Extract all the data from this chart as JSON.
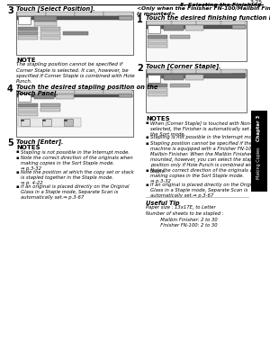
{
  "page_num": "3-25",
  "section_title": "5. Selecting the Finishing",
  "bg_color": "#ffffff",
  "left_col": {
    "step3_num": "3",
    "step3_text": "Touch [Select Position].",
    "note_label": "NOTE",
    "note_text": "The stapling position cannot be specified if\nCorner Staple is selected. It can, however, be\nspecified if Corner Staple is combined with Hole\nPunch.",
    "step4_num": "4",
    "step4_text": "Touch the desired stapling position on the\nTouch Panel.",
    "step5_num": "5",
    "step5_text": "Touch [Enter].",
    "notes_label": "NOTES",
    "notes_items": [
      "Stapling is not possible in the Interrupt mode.",
      "Note the correct direction of the originals when\nmaking copies in the Sort Staple mode.\n⇒ p.3-32",
      "Note the position at which the copy set or stack\nis stapled together in the Staple mode.\n⇒ p. 4-22",
      "If an original is placed directly on the Original\nGlass in a Staple mode, Separate Scan is\nautomatically set.⇒ p.3-67"
    ]
  },
  "right_col": {
    "header_italic": "<Only when the Finisher FN-100/Mailbin Finisher\nis mounted>",
    "step1_num": "1",
    "step1_text": "Touch the desired finishing function key.",
    "step2_num": "2",
    "step2_text": "Touch [Corner Staple].",
    "notes_label": "NOTES",
    "notes_items": [
      "When [Corner Staple] is touched with Non-Sort\nselected, the Finisher is automatically set into\nthe Sort mode.",
      "Stapling is not possible in the Interrupt mode.",
      "Stapling position cannot be specified if the\nmachine is equipped with a Finisher FN-100 or\nMailbin Finisher. When the Mailbin Finisher is\nmounted, however, you can select the stapling\nposition only if Hole Punch is combined with\nStaple.",
      "Note the correct direction of the originals when\nmaking copies in the Sort Staple mode.\n⇒ p.3-32",
      "If an original is placed directly on the Original\nGlass in a Staple mode, Separate Scan is\nautomatically set.⇒ p.3-67"
    ],
    "tip_label": "Useful Tip",
    "tip_text": "Paper size : 13x17E, to Letter\nNumber of sheets to be stapled :\n          Mailbin Finisher: 2 to 30\n          Finisher FN-100: 2 to 30"
  },
  "tab_label_top": "Chapter 3",
  "tab_label_bot": "Making Copies"
}
